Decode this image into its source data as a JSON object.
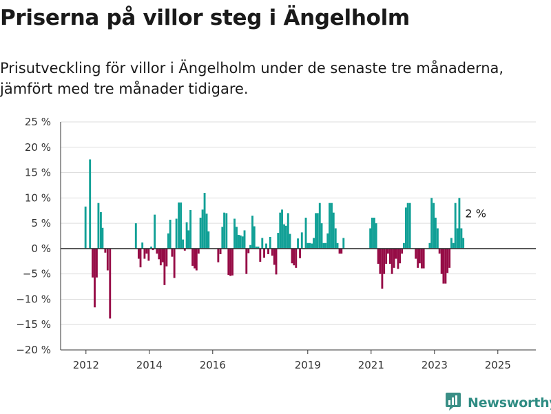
{
  "title": "Priserna på villor steg i Ängelholm",
  "subtitle": "Prisutveckling för villor i Ängelholm under de senaste tre månaderna, jämfört med tre månader tidigare.",
  "brand": {
    "name": "Newsworthy",
    "icon": "newsworthy-logo-icon"
  },
  "colors": {
    "positive": "#11a096",
    "negative": "#960c46",
    "grid": "#dddddd",
    "axis": "#333333"
  },
  "chart_data": {
    "type": "bar",
    "title": "",
    "xlabel": "",
    "ylabel": "",
    "ylim": [
      -20,
      25
    ],
    "xlim": [
      2011.2,
      2026.2
    ],
    "yticks": [
      -20,
      -15,
      -10,
      -5,
      0,
      5,
      10,
      15,
      20,
      25
    ],
    "ytick_labels": [
      "−20 %",
      "−15 %",
      "−10 %",
      "−5 %",
      "0 %",
      "5 %",
      "10 %",
      "15 %",
      "20 %",
      "25 %"
    ],
    "xticks": [
      2012,
      2014,
      2016,
      2019,
      2021,
      2023,
      2025
    ],
    "xtick_labels": [
      "2012",
      "2014",
      "2016",
      "2019",
      "2021",
      "2023",
      "2025"
    ],
    "bar_width_years": 0.0625,
    "grid": true,
    "last_value_label": "2 %",
    "points": [
      [
        2011.986,
        8.3
      ],
      [
        2012.128,
        17.6
      ],
      [
        2012.211,
        -5.7
      ],
      [
        2012.276,
        -11.6
      ],
      [
        2012.34,
        -5.7
      ],
      [
        2012.394,
        9.0
      ],
      [
        2012.47,
        7.2
      ],
      [
        2012.524,
        4.1
      ],
      [
        2012.61,
        -0.8
      ],
      [
        2012.685,
        -4.3
      ],
      [
        2012.76,
        -13.8
      ],
      [
        2013.576,
        5.0
      ],
      [
        2013.665,
        -2.0
      ],
      [
        2013.722,
        -3.7
      ],
      [
        2013.78,
        1.2
      ],
      [
        2013.85,
        -2.0
      ],
      [
        2013.915,
        -1.0
      ],
      [
        2013.98,
        -2.4
      ],
      [
        2014.06,
        0.4
      ],
      [
        2014.115,
        -0.3
      ],
      [
        2014.17,
        6.7
      ],
      [
        2014.24,
        -1.0
      ],
      [
        2014.305,
        -2.1
      ],
      [
        2014.36,
        -3.3
      ],
      [
        2014.42,
        -2.7
      ],
      [
        2014.48,
        -7.2
      ],
      [
        2014.545,
        -3.5
      ],
      [
        2014.6,
        3.0
      ],
      [
        2014.66,
        5.7
      ],
      [
        2014.72,
        -1.6
      ],
      [
        2014.79,
        -5.8
      ],
      [
        2014.855,
        5.9
      ],
      [
        2014.93,
        9.1
      ],
      [
        2014.995,
        9.1
      ],
      [
        2015.06,
        1.8
      ],
      [
        2015.12,
        -0.4
      ],
      [
        2015.18,
        5.2
      ],
      [
        2015.24,
        3.6
      ],
      [
        2015.3,
        7.6
      ],
      [
        2015.365,
        -3.4
      ],
      [
        2015.43,
        -3.9
      ],
      [
        2015.49,
        -4.3
      ],
      [
        2015.555,
        -1.0
      ],
      [
        2015.615,
        6.1
      ],
      [
        2015.68,
        7.7
      ],
      [
        2015.745,
        11.0
      ],
      [
        2015.81,
        6.9
      ],
      [
        2015.87,
        3.4
      ],
      [
        2016.175,
        -2.7
      ],
      [
        2016.245,
        -1.1
      ],
      [
        2016.305,
        4.3
      ],
      [
        2016.365,
        7.1
      ],
      [
        2016.435,
        7.0
      ],
      [
        2016.5,
        -5.2
      ],
      [
        2016.56,
        -5.4
      ],
      [
        2016.625,
        -5.3
      ],
      [
        2016.69,
        5.9
      ],
      [
        2016.755,
        4.3
      ],
      [
        2016.82,
        2.7
      ],
      [
        2016.88,
        2.6
      ],
      [
        2016.945,
        2.4
      ],
      [
        2017.005,
        3.6
      ],
      [
        2017.065,
        -5.0
      ],
      [
        2017.13,
        -0.9
      ],
      [
        2017.19,
        0.7
      ],
      [
        2017.255,
        6.5
      ],
      [
        2017.315,
        4.4
      ],
      [
        2017.38,
        0.4
      ],
      [
        2017.44,
        0.4
      ],
      [
        2017.5,
        -2.6
      ],
      [
        2017.565,
        2.1
      ],
      [
        2017.625,
        -1.8
      ],
      [
        2017.69,
        1.0
      ],
      [
        2017.755,
        -1.1
      ],
      [
        2017.815,
        2.3
      ],
      [
        2017.88,
        -1.4
      ],
      [
        2017.945,
        -3.2
      ],
      [
        2018.005,
        -5.1
      ],
      [
        2018.065,
        3.1
      ],
      [
        2018.13,
        7.1
      ],
      [
        2018.19,
        7.7
      ],
      [
        2018.255,
        4.8
      ],
      [
        2018.315,
        4.5
      ],
      [
        2018.38,
        7.0
      ],
      [
        2018.44,
        2.9
      ],
      [
        2018.505,
        -2.9
      ],
      [
        2018.565,
        -3.3
      ],
      [
        2018.63,
        -3.8
      ],
      [
        2018.69,
        2.0
      ],
      [
        2018.755,
        -1.9
      ],
      [
        2018.815,
        3.2
      ],
      [
        2018.88,
        -0.1
      ],
      [
        2018.94,
        6.1
      ],
      [
        2019.005,
        1.1
      ],
      [
        2019.065,
        1.1
      ],
      [
        2019.13,
        1.0
      ],
      [
        2019.19,
        2.1
      ],
      [
        2019.255,
        7.0
      ],
      [
        2019.315,
        7.0
      ],
      [
        2019.38,
        9.0
      ],
      [
        2019.44,
        5.0
      ],
      [
        2019.505,
        1.1
      ],
      [
        2019.565,
        1.1
      ],
      [
        2019.63,
        3.0
      ],
      [
        2019.69,
        9.0
      ],
      [
        2019.755,
        9.0
      ],
      [
        2019.815,
        7.1
      ],
      [
        2019.88,
        4.0
      ],
      [
        2019.94,
        1.1
      ],
      [
        2020.005,
        -1.0
      ],
      [
        2020.065,
        -1.0
      ],
      [
        2020.13,
        2.1
      ],
      [
        2020.975,
        4.0
      ],
      [
        2021.035,
        6.1
      ],
      [
        2021.1,
        6.1
      ],
      [
        2021.16,
        5.0
      ],
      [
        2021.225,
        -3.0
      ],
      [
        2021.285,
        -5.0
      ],
      [
        2021.35,
        -7.9
      ],
      [
        2021.41,
        -5.0
      ],
      [
        2021.475,
        -3.0
      ],
      [
        2021.535,
        -1.0
      ],
      [
        2021.6,
        -3.0
      ],
      [
        2021.66,
        -5.0
      ],
      [
        2021.725,
        -3.8
      ],
      [
        2021.785,
        -2.0
      ],
      [
        2021.85,
        -4.0
      ],
      [
        2021.91,
        -2.9
      ],
      [
        2021.975,
        -1.0
      ],
      [
        2022.035,
        1.1
      ],
      [
        2022.1,
        8.1
      ],
      [
        2022.16,
        9.0
      ],
      [
        2022.225,
        9.0
      ],
      [
        2022.41,
        -2.0
      ],
      [
        2022.475,
        -3.8
      ],
      [
        2022.535,
        -2.9
      ],
      [
        2022.6,
        -3.9
      ],
      [
        2022.66,
        -3.9
      ],
      [
        2022.85,
        1.1
      ],
      [
        2022.91,
        10.0
      ],
      [
        2022.975,
        9.0
      ],
      [
        2023.035,
        6.1
      ],
      [
        2023.1,
        4.0
      ],
      [
        2023.16,
        -1.0
      ],
      [
        2023.225,
        -5.0
      ],
      [
        2023.285,
        -6.9
      ],
      [
        2023.35,
        -6.9
      ],
      [
        2023.41,
        -4.8
      ],
      [
        2023.475,
        -3.8
      ],
      [
        2023.535,
        2.1
      ],
      [
        2023.6,
        1.1
      ],
      [
        2023.66,
        9.0
      ],
      [
        2023.725,
        4.0
      ],
      [
        2023.785,
        10.0
      ],
      [
        2023.85,
        4.0
      ],
      [
        2023.91,
        2.1
      ]
    ]
  }
}
